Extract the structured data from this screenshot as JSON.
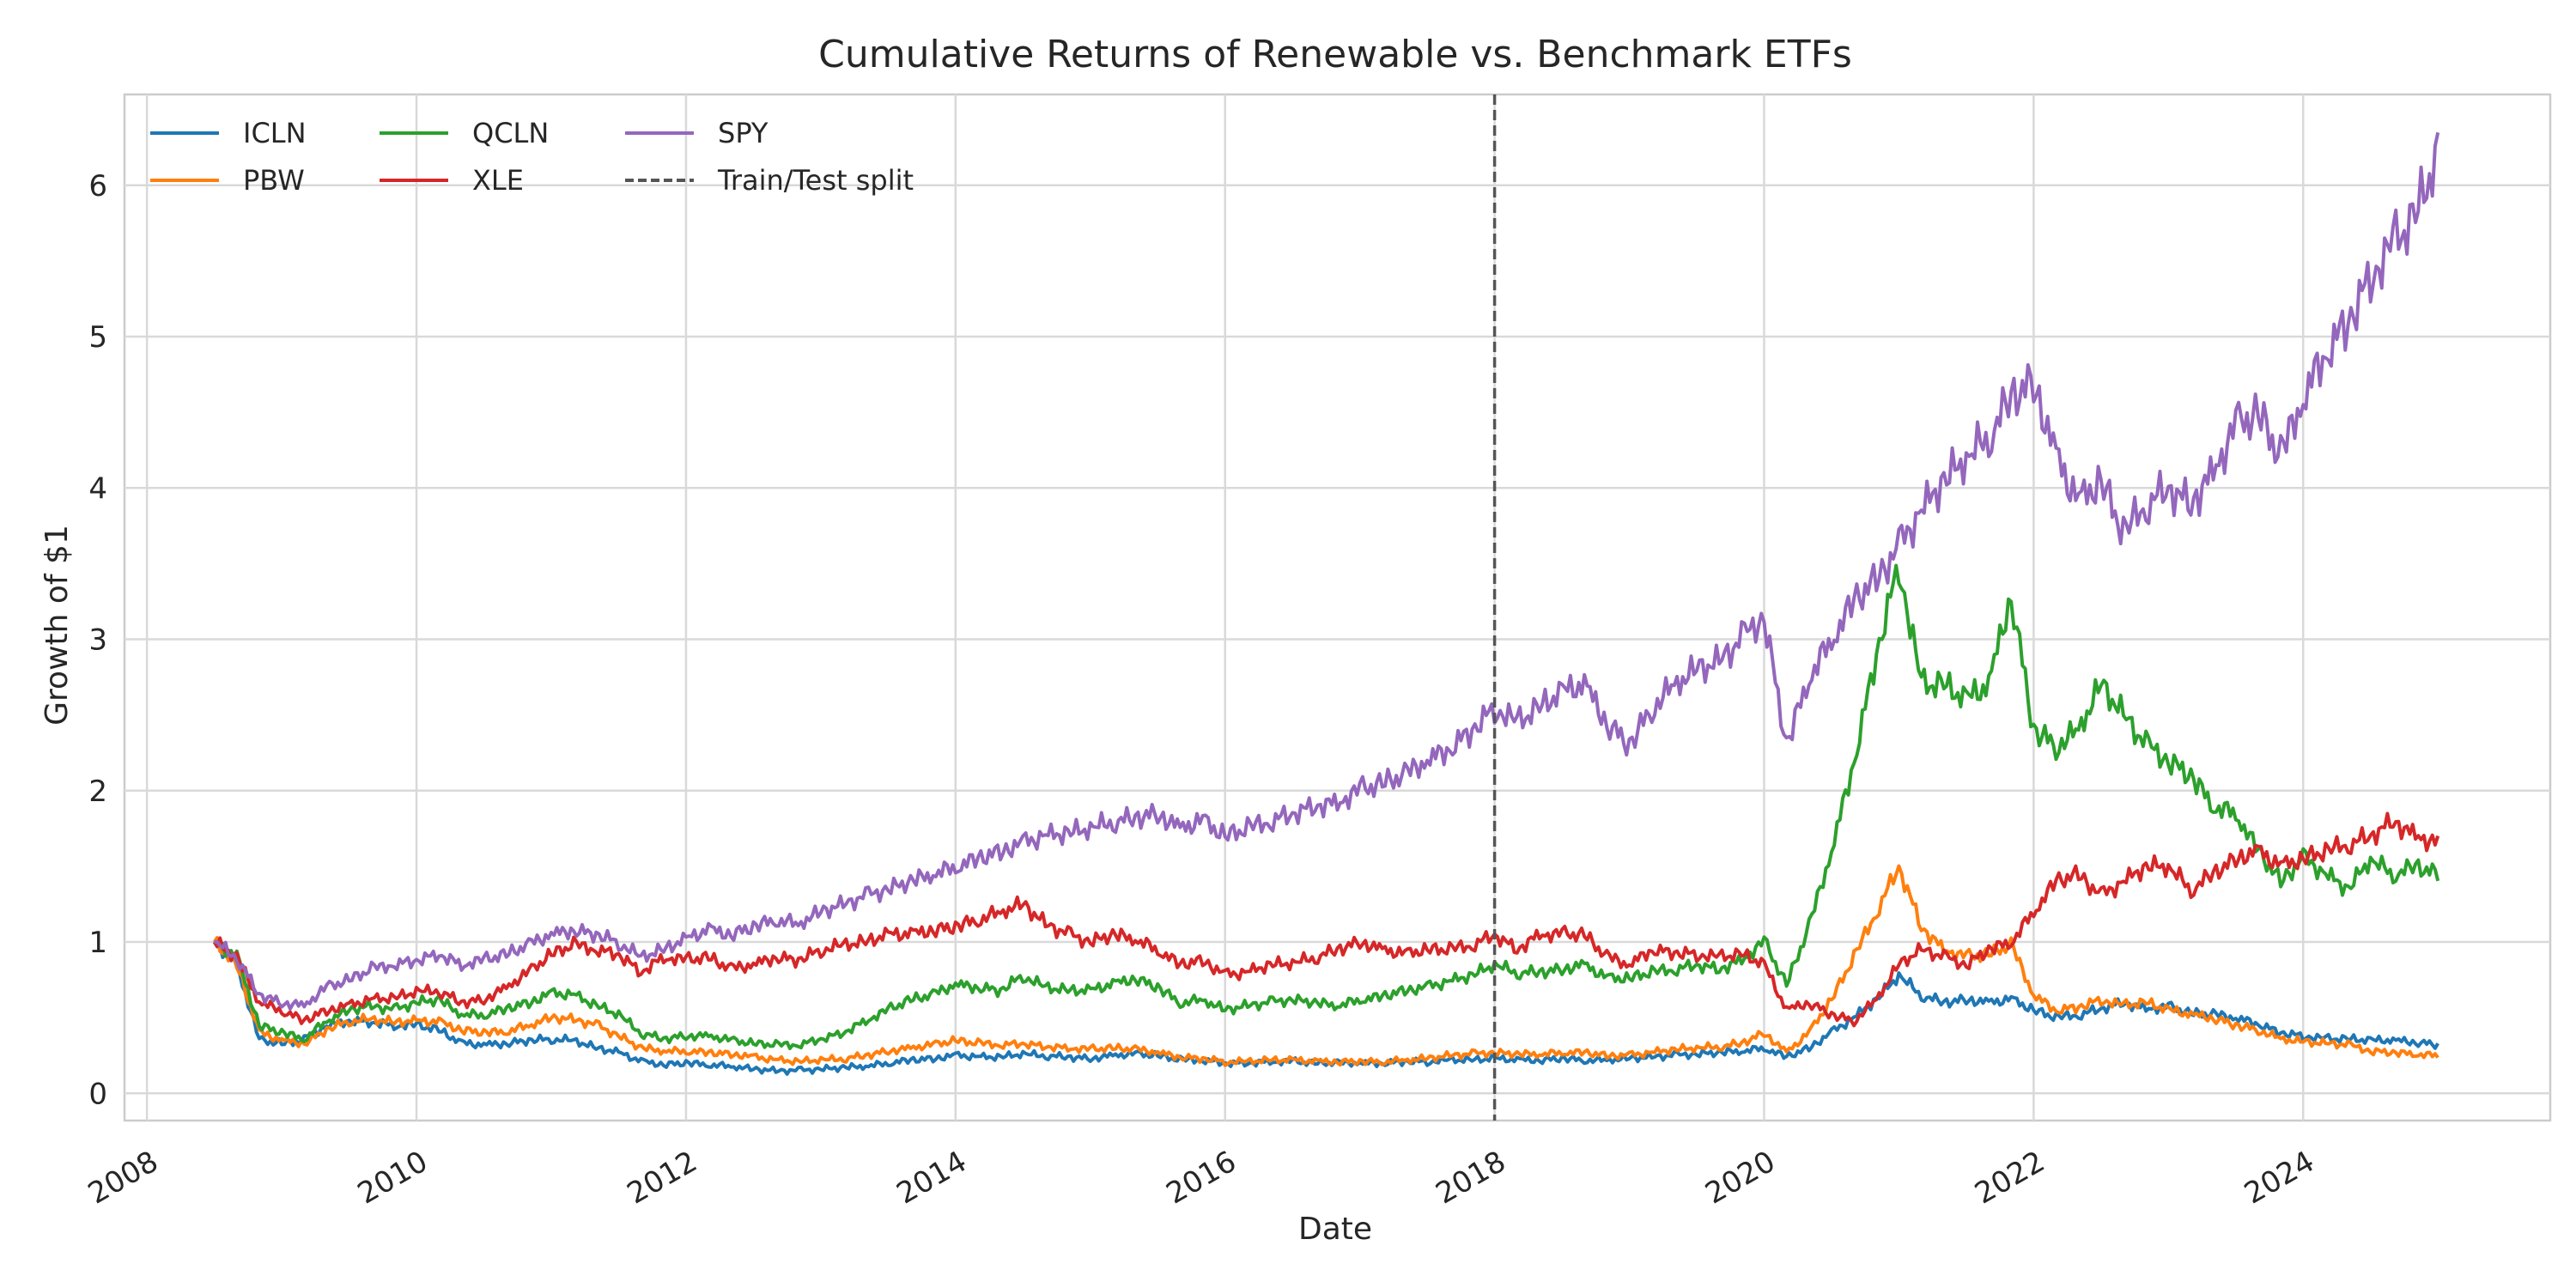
{
  "chart_data": {
    "type": "line",
    "title": "Cumulative Returns of Renewable vs. Benchmark ETFs",
    "xlabel": "Date",
    "ylabel": "Growth of $1",
    "xlim": [
      "2007-11",
      "2025-11"
    ],
    "ylim": [
      -0.18,
      6.6
    ],
    "x_ticks": [
      "2008",
      "2010",
      "2012",
      "2014",
      "2016",
      "2018",
      "2020",
      "2022",
      "2024"
    ],
    "y_ticks": [
      "0",
      "1",
      "2",
      "3",
      "4",
      "5",
      "6"
    ],
    "grid": true,
    "legend_placement": "top-left",
    "x": [
      "2008-07",
      "2008-09",
      "2008-11",
      "2009-01",
      "2009-03",
      "2009-05",
      "2009-07",
      "2009-09",
      "2009-11",
      "2010-01",
      "2010-03",
      "2010-05",
      "2010-07",
      "2010-09",
      "2010-11",
      "2011-01",
      "2011-03",
      "2011-05",
      "2011-07",
      "2011-09",
      "2011-11",
      "2012-01",
      "2012-03",
      "2012-05",
      "2012-07",
      "2012-09",
      "2012-11",
      "2013-01",
      "2013-03",
      "2013-05",
      "2013-07",
      "2013-09",
      "2013-11",
      "2014-01",
      "2014-03",
      "2014-05",
      "2014-07",
      "2014-09",
      "2014-11",
      "2015-01",
      "2015-03",
      "2015-05",
      "2015-07",
      "2015-09",
      "2015-11",
      "2016-01",
      "2016-03",
      "2016-05",
      "2016-07",
      "2016-09",
      "2016-11",
      "2017-01",
      "2017-03",
      "2017-05",
      "2017-07",
      "2017-09",
      "2017-11",
      "2018-01",
      "2018-03",
      "2018-05",
      "2018-07",
      "2018-09",
      "2018-11",
      "2019-01",
      "2019-03",
      "2019-05",
      "2019-07",
      "2019-09",
      "2019-11",
      "2020-01",
      "2020-03",
      "2020-05",
      "2020-07",
      "2020-09",
      "2020-11",
      "2021-01",
      "2021-03",
      "2021-05",
      "2021-07",
      "2021-09",
      "2021-11",
      "2022-01",
      "2022-03",
      "2022-05",
      "2022-07",
      "2022-09",
      "2022-11",
      "2023-01",
      "2023-03",
      "2023-05",
      "2023-07",
      "2023-09",
      "2023-11",
      "2024-01",
      "2024-03",
      "2024-05",
      "2024-07",
      "2024-09",
      "2024-11",
      "2025-01"
    ],
    "series": [
      {
        "name": "ICLN",
        "color": "#1f77b4",
        "values": [
          1.0,
          0.85,
          0.35,
          0.33,
          0.35,
          0.45,
          0.48,
          0.47,
          0.45,
          0.45,
          0.42,
          0.33,
          0.32,
          0.33,
          0.35,
          0.36,
          0.35,
          0.3,
          0.27,
          0.21,
          0.19,
          0.2,
          0.19,
          0.18,
          0.16,
          0.15,
          0.15,
          0.16,
          0.17,
          0.18,
          0.2,
          0.22,
          0.23,
          0.25,
          0.24,
          0.24,
          0.26,
          0.25,
          0.24,
          0.23,
          0.25,
          0.26,
          0.25,
          0.22,
          0.22,
          0.2,
          0.2,
          0.21,
          0.21,
          0.2,
          0.2,
          0.2,
          0.2,
          0.21,
          0.21,
          0.22,
          0.22,
          0.23,
          0.22,
          0.22,
          0.23,
          0.22,
          0.22,
          0.23,
          0.24,
          0.25,
          0.26,
          0.27,
          0.28,
          0.3,
          0.24,
          0.3,
          0.4,
          0.5,
          0.62,
          0.78,
          0.65,
          0.6,
          0.62,
          0.6,
          0.62,
          0.55,
          0.5,
          0.52,
          0.56,
          0.6,
          0.56,
          0.57,
          0.53,
          0.52,
          0.5,
          0.46,
          0.4,
          0.38,
          0.36,
          0.36,
          0.35,
          0.35,
          0.34,
          0.32
        ]
      },
      {
        "name": "PBW",
        "color": "#ff7f0e",
        "values": [
          1.0,
          0.85,
          0.4,
          0.35,
          0.33,
          0.42,
          0.48,
          0.49,
          0.47,
          0.48,
          0.47,
          0.42,
          0.4,
          0.41,
          0.45,
          0.5,
          0.49,
          0.45,
          0.38,
          0.3,
          0.28,
          0.28,
          0.27,
          0.26,
          0.24,
          0.22,
          0.21,
          0.22,
          0.23,
          0.25,
          0.28,
          0.3,
          0.32,
          0.35,
          0.33,
          0.32,
          0.33,
          0.31,
          0.3,
          0.29,
          0.3,
          0.29,
          0.27,
          0.24,
          0.23,
          0.21,
          0.21,
          0.22,
          0.22,
          0.21,
          0.21,
          0.21,
          0.21,
          0.22,
          0.23,
          0.25,
          0.26,
          0.27,
          0.26,
          0.26,
          0.27,
          0.27,
          0.25,
          0.25,
          0.27,
          0.29,
          0.3,
          0.31,
          0.33,
          0.4,
          0.27,
          0.4,
          0.62,
          0.9,
          1.2,
          1.5,
          1.1,
          0.95,
          0.9,
          0.92,
          0.98,
          0.65,
          0.55,
          0.57,
          0.62,
          0.58,
          0.6,
          0.55,
          0.52,
          0.5,
          0.45,
          0.42,
          0.36,
          0.34,
          0.33,
          0.32,
          0.28,
          0.27,
          0.26,
          0.25
        ]
      },
      {
        "name": "QCLN",
        "color": "#2ca02c",
        "values": [
          1.0,
          0.9,
          0.45,
          0.4,
          0.36,
          0.48,
          0.55,
          0.58,
          0.55,
          0.6,
          0.62,
          0.52,
          0.52,
          0.56,
          0.6,
          0.66,
          0.65,
          0.58,
          0.52,
          0.4,
          0.36,
          0.38,
          0.38,
          0.35,
          0.33,
          0.32,
          0.32,
          0.36,
          0.4,
          0.48,
          0.55,
          0.62,
          0.65,
          0.72,
          0.7,
          0.68,
          0.78,
          0.7,
          0.68,
          0.68,
          0.72,
          0.76,
          0.7,
          0.6,
          0.62,
          0.55,
          0.58,
          0.6,
          0.62,
          0.6,
          0.58,
          0.62,
          0.64,
          0.68,
          0.7,
          0.74,
          0.78,
          0.85,
          0.8,
          0.8,
          0.82,
          0.85,
          0.76,
          0.76,
          0.8,
          0.82,
          0.85,
          0.82,
          0.88,
          1.0,
          0.72,
          1.1,
          1.6,
          2.2,
          2.9,
          3.5,
          2.7,
          2.7,
          2.6,
          2.7,
          3.3,
          2.4,
          2.3,
          2.4,
          2.7,
          2.5,
          2.3,
          2.2,
          2.1,
          1.9,
          1.85,
          1.6,
          1.4,
          1.55,
          1.45,
          1.35,
          1.55,
          1.45,
          1.5,
          1.45
        ]
      },
      {
        "name": "XLE",
        "color": "#d62728",
        "values": [
          1.0,
          0.9,
          0.6,
          0.55,
          0.48,
          0.55,
          0.58,
          0.62,
          0.63,
          0.67,
          0.68,
          0.6,
          0.62,
          0.7,
          0.8,
          0.92,
          0.98,
          0.95,
          0.92,
          0.8,
          0.9,
          0.88,
          0.9,
          0.82,
          0.85,
          0.9,
          0.88,
          0.95,
          0.98,
          1.0,
          1.05,
          1.05,
          1.08,
          1.1,
          1.15,
          1.2,
          1.25,
          1.12,
          1.05,
          1.0,
          1.05,
          1.02,
          0.95,
          0.85,
          0.88,
          0.78,
          0.8,
          0.85,
          0.86,
          0.9,
          0.95,
          1.0,
          0.95,
          0.92,
          0.95,
          0.95,
          0.98,
          1.05,
          0.95,
          1.05,
          1.05,
          1.05,
          0.9,
          0.85,
          0.95,
          0.93,
          0.92,
          0.9,
          0.92,
          0.85,
          0.55,
          0.6,
          0.52,
          0.48,
          0.62,
          0.85,
          0.95,
          0.9,
          0.85,
          0.95,
          1.0,
          1.2,
          1.4,
          1.45,
          1.3,
          1.4,
          1.5,
          1.5,
          1.35,
          1.45,
          1.55,
          1.6,
          1.5,
          1.55,
          1.6,
          1.65,
          1.7,
          1.8,
          1.7,
          1.65
        ]
      },
      {
        "name": "SPY",
        "color": "#9467bd",
        "values": [
          1.0,
          0.9,
          0.65,
          0.6,
          0.58,
          0.7,
          0.75,
          0.82,
          0.85,
          0.88,
          0.92,
          0.85,
          0.88,
          0.92,
          0.98,
          1.05,
          1.08,
          1.05,
          1.0,
          0.9,
          0.95,
          1.02,
          1.08,
          1.05,
          1.1,
          1.15,
          1.12,
          1.2,
          1.25,
          1.3,
          1.35,
          1.4,
          1.45,
          1.5,
          1.55,
          1.6,
          1.65,
          1.7,
          1.72,
          1.75,
          1.8,
          1.82,
          1.85,
          1.75,
          1.8,
          1.7,
          1.75,
          1.8,
          1.85,
          1.9,
          1.92,
          2.0,
          2.05,
          2.1,
          2.2,
          2.28,
          2.4,
          2.55,
          2.45,
          2.55,
          2.65,
          2.7,
          2.45,
          2.3,
          2.55,
          2.7,
          2.8,
          2.85,
          3.0,
          3.15,
          2.3,
          2.75,
          3.0,
          3.25,
          3.4,
          3.6,
          3.85,
          4.05,
          4.2,
          4.35,
          4.6,
          4.7,
          4.2,
          3.9,
          4.05,
          3.7,
          3.9,
          4.0,
          3.9,
          4.1,
          4.4,
          4.5,
          4.2,
          4.6,
          4.9,
          5.1,
          5.4,
          5.6,
          5.8,
          6.2
        ]
      }
    ],
    "reference_lines": [
      {
        "name": "Train/Test split",
        "x": "2018-01",
        "style": "dashed",
        "color": "#555555"
      }
    ]
  }
}
